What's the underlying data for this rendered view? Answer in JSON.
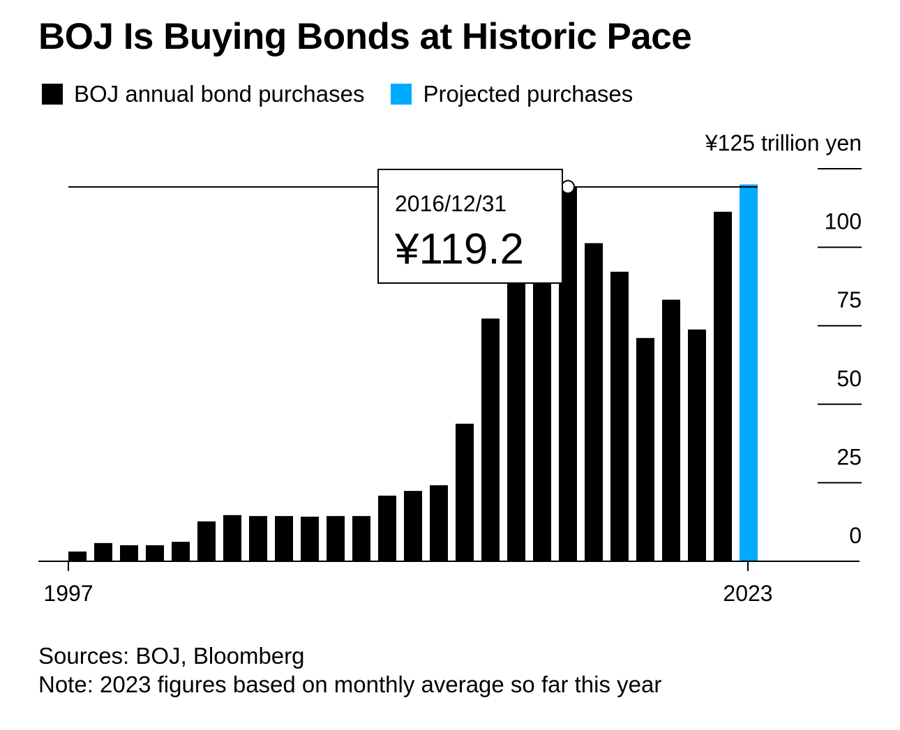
{
  "chart_data": {
    "type": "bar",
    "title": "BOJ Is Buying Bonds at Historic Pace",
    "legend": [
      {
        "name": "BOJ annual bond purchases",
        "color": "#000000"
      },
      {
        "name": "Projected purchases",
        "color": "#00aaff"
      }
    ],
    "legend_position": "top-left",
    "ylabel": "¥125 trillion yen",
    "ylim": [
      0,
      125
    ],
    "yticks": [
      0,
      25,
      50,
      75,
      100,
      125
    ],
    "ytick_labels": [
      "0",
      "25",
      "50",
      "75",
      "100",
      "¥125 trillion yen"
    ],
    "x_tick_labels": [
      "1997",
      "2023"
    ],
    "categories": [
      1997,
      1998,
      1999,
      2000,
      2001,
      2002,
      2003,
      2004,
      2005,
      2006,
      2007,
      2008,
      2009,
      2010,
      2011,
      2012,
      2013,
      2014,
      2015,
      2016,
      2017,
      2018,
      2019,
      2020,
      2021,
      2022,
      2023
    ],
    "values": [
      3.1,
      5.8,
      5.1,
      5.1,
      6.2,
      12.7,
      14.7,
      14.4,
      14.4,
      14.2,
      14.4,
      14.4,
      20.9,
      22.4,
      24.2,
      43.8,
      77.3,
      96,
      108,
      119.2,
      101.3,
      92.2,
      71.1,
      83.3,
      73.8,
      111.3,
      120
    ],
    "projected_categories": [
      2023
    ],
    "tooltip": {
      "date": "2016/12/31",
      "value": "¥119.2",
      "value_numeric": 119.2
    }
  },
  "sources": "Sources: BOJ, Bloomberg",
  "note": "Note: 2023 figures based on monthly average so far this year"
}
